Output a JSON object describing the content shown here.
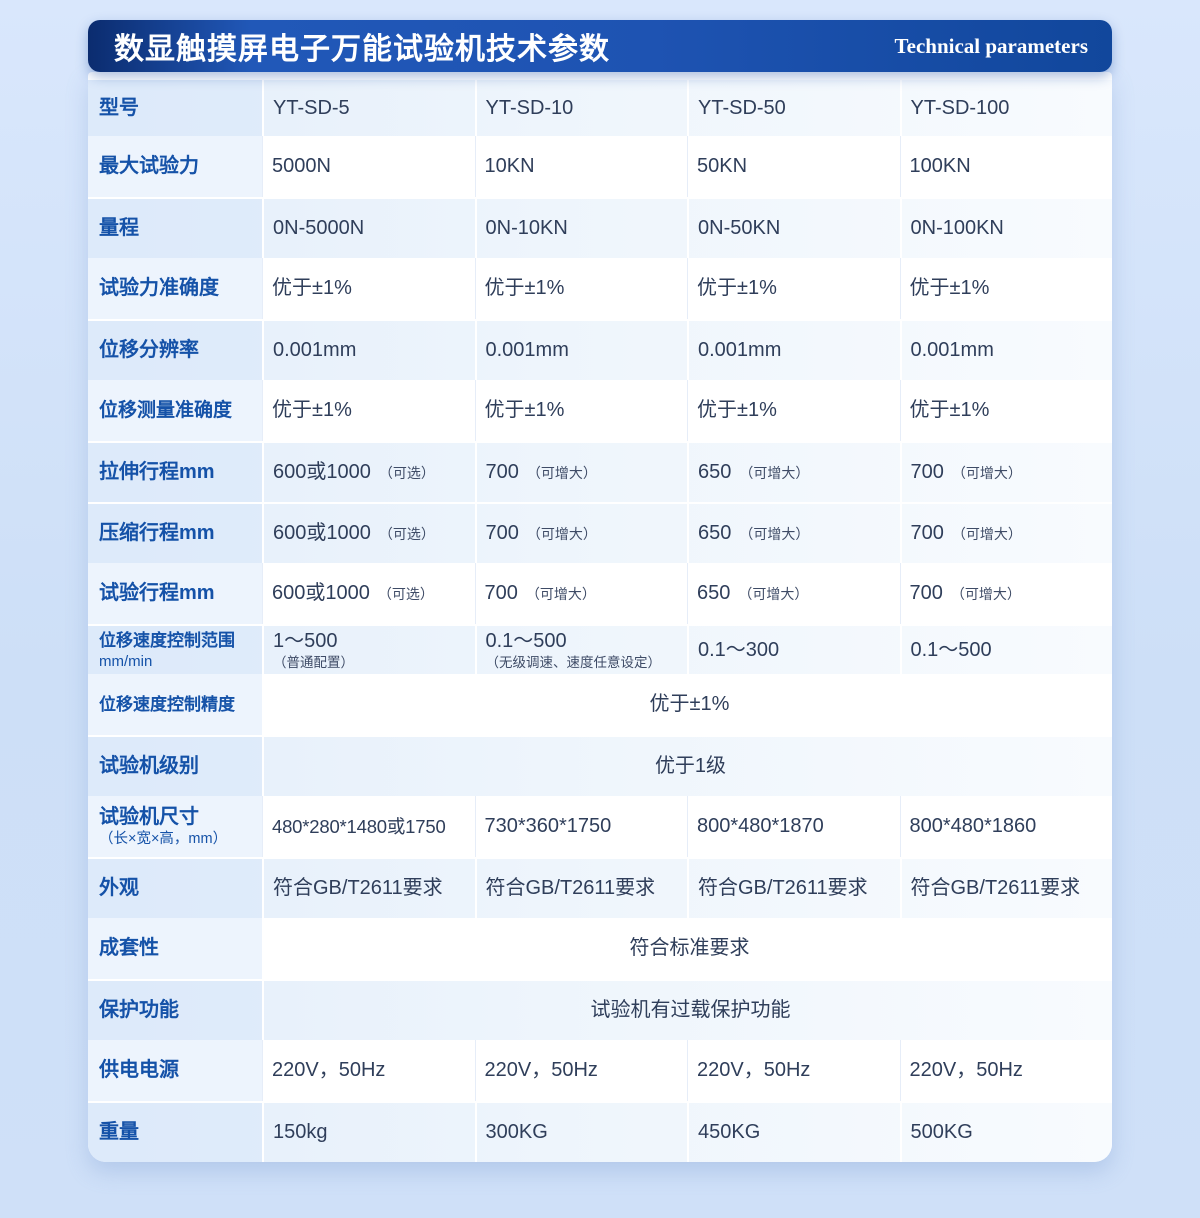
{
  "header": {
    "title": "数显触摸屏电子万能试验机技术参数",
    "subtitle_en": "Technical parameters",
    "banner_gradient": [
      "#0b2c6f",
      "#1e53b2",
      "#11479c"
    ]
  },
  "colors": {
    "page_background": "#cfe0f8",
    "label_blue": "#1552a8",
    "value_text": "#2f3e5a",
    "alt_row": "#e9f2fb"
  },
  "table": {
    "rows": [
      {
        "label": "型号",
        "alt": true,
        "size": "r-models",
        "cells": [
          {
            "main": "YT-SD-5"
          },
          {
            "main": "YT-SD-10"
          },
          {
            "main": "YT-SD-50"
          },
          {
            "main": "YT-SD-100"
          }
        ]
      },
      {
        "label": "最大试验力",
        "cells": [
          {
            "main": "5000N"
          },
          {
            "main": "10KN"
          },
          {
            "main": "50KN"
          },
          {
            "main": "100KN"
          }
        ]
      },
      {
        "label": "量程",
        "alt": true,
        "cells": [
          {
            "main": "0N-5000N"
          },
          {
            "main": "0N-10KN"
          },
          {
            "main": "0N-50KN"
          },
          {
            "main": "0N-100KN"
          }
        ]
      },
      {
        "label": "试验力准确度",
        "cells": [
          {
            "main": "优于±1%"
          },
          {
            "main": "优于±1%"
          },
          {
            "main": "优于±1%"
          },
          {
            "main": "优于±1%"
          }
        ]
      },
      {
        "label": "位移分辨率",
        "alt": true,
        "cells": [
          {
            "main": "0.001mm"
          },
          {
            "main": "0.001mm"
          },
          {
            "main": "0.001mm"
          },
          {
            "main": "0.001mm"
          }
        ]
      },
      {
        "label": "位移测量准确度",
        "cells": [
          {
            "main": "优于±1%"
          },
          {
            "main": "优于±1%"
          },
          {
            "main": "优于±1%"
          },
          {
            "main": "优于±1%"
          }
        ]
      },
      {
        "label": "拉伸行程mm",
        "alt": true,
        "cells": [
          {
            "main": "600或1000",
            "note": "（可选）"
          },
          {
            "main": "700",
            "note": "（可增大）"
          },
          {
            "main": "650",
            "note": "（可增大）"
          },
          {
            "main": "700",
            "note": "（可增大）"
          }
        ]
      },
      {
        "label": "压缩行程mm",
        "alt": true,
        "cells": [
          {
            "main": "600或1000",
            "note": "（可选）"
          },
          {
            "main": "700",
            "note": "（可增大）"
          },
          {
            "main": "650",
            "note": "（可增大）"
          },
          {
            "main": "700",
            "note": "（可增大）"
          }
        ]
      },
      {
        "label": "试验行程mm",
        "cells": [
          {
            "main": "600或1000",
            "note": "（可选）"
          },
          {
            "main": "700",
            "note": "（可增大）"
          },
          {
            "main": "650",
            "note": "（可增大）"
          },
          {
            "main": "700",
            "note": "（可增大）"
          }
        ]
      },
      {
        "label": "位移速度控制范围",
        "sublabel": "mm/min",
        "alt": true,
        "size": "r-range",
        "cells": [
          {
            "main": "1～500",
            "sub": "（普通配置）"
          },
          {
            "main": "0.1～500",
            "sub": "（无级调速、速度任意设定）"
          },
          {
            "main": "0.1～300"
          },
          {
            "main": "0.1～500"
          }
        ]
      },
      {
        "label": "位移速度控制精度",
        "span": true,
        "value": "优于±1%"
      },
      {
        "label": "试验机级别",
        "alt": true,
        "span": true,
        "value": "优于1级"
      },
      {
        "label": "试验机尺寸",
        "sublabel": "（长×宽×高，mm）",
        "cells": [
          {
            "main": "480*280*1480或1750"
          },
          {
            "main": "730*360*1750"
          },
          {
            "main": "800*480*1870"
          },
          {
            "main": "800*480*1860"
          }
        ]
      },
      {
        "label": "外观",
        "alt": true,
        "cells": [
          {
            "main": "符合GB/T2611要求"
          },
          {
            "main": "符合GB/T2611要求"
          },
          {
            "main": "符合GB/T2611要求"
          },
          {
            "main": "符合GB/T2611要求"
          }
        ]
      },
      {
        "label": "成套性",
        "span": true,
        "value": "符合标准要求"
      },
      {
        "label": "保护功能",
        "alt": true,
        "span": true,
        "value": "试验机有过载保护功能"
      },
      {
        "label": "供电电源",
        "cells": [
          {
            "main": "220V，50Hz"
          },
          {
            "main": "220V，50Hz"
          },
          {
            "main": "220V，50Hz"
          },
          {
            "main": "220V，50Hz"
          }
        ]
      },
      {
        "label": "重量",
        "alt": true,
        "cells": [
          {
            "main": "150kg"
          },
          {
            "main": "300KG"
          },
          {
            "main": "450KG"
          },
          {
            "main": "500KG"
          }
        ]
      }
    ]
  }
}
